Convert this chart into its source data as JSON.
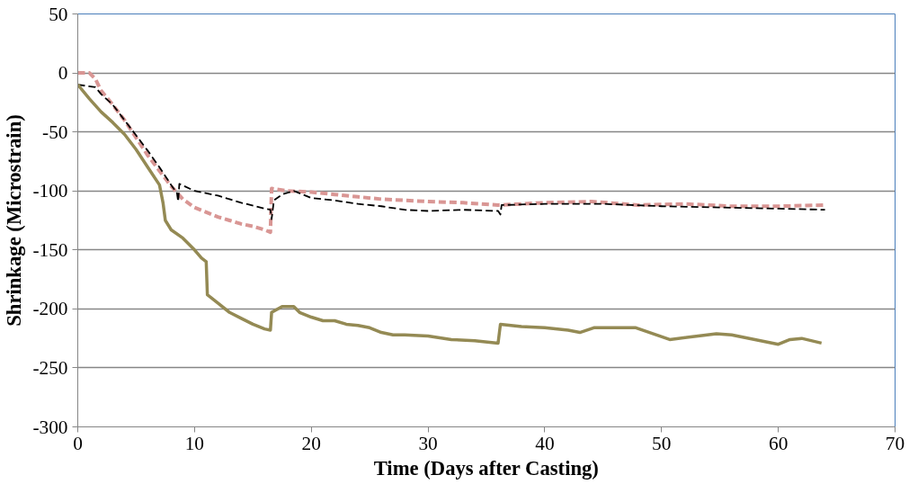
{
  "chart_data": {
    "type": "line",
    "xlabel": "Time (Days after Casting)",
    "ylabel": "Shrinkage (Microstrain)",
    "xlim": [
      0,
      70
    ],
    "xticks": [
      0,
      10,
      20,
      30,
      40,
      50,
      60,
      70
    ],
    "ylim": [
      -300,
      50
    ],
    "yticks": [
      -300,
      -250,
      -200,
      -150,
      -100,
      -50,
      0,
      50
    ],
    "grid": "y",
    "marker": "none",
    "series": [
      {
        "color": "#d99694",
        "line_style": "dashed",
        "x": [
          0,
          1,
          1.5,
          2,
          3,
          4,
          5,
          6,
          7,
          8,
          9,
          10,
          11,
          12,
          13,
          14,
          15,
          16,
          16.5,
          16.6,
          18,
          20,
          22,
          24,
          26,
          28,
          30,
          33,
          36,
          40,
          44,
          48,
          52,
          56,
          60,
          64
        ],
        "values": [
          0,
          0,
          -5,
          -15,
          -27,
          -40,
          -55,
          -70,
          -83,
          -96,
          -107,
          -114,
          -118,
          -122,
          -125,
          -128,
          -130,
          -133,
          -135,
          -98,
          -100,
          -101,
          -103,
          -105,
          -107,
          -108,
          -109,
          -110,
          -112,
          -110,
          -109,
          -112,
          -111,
          -113,
          -113,
          -112
        ]
      },
      {
        "color": "#000000",
        "line_style": "dashed",
        "x": [
          0,
          1.5,
          2,
          3,
          4,
          5,
          6,
          7,
          8,
          8.5,
          8.6,
          8.7,
          10,
          12,
          14,
          16,
          16.5,
          16.6,
          16.8,
          17.5,
          18.5,
          20,
          22,
          24,
          26,
          28,
          30,
          33,
          36,
          36.2,
          36.3,
          40,
          45,
          50,
          55,
          60,
          64
        ],
        "values": [
          -10,
          -12,
          -18,
          -27,
          -40,
          -53,
          -66,
          -80,
          -95,
          -102,
          -109,
          -94,
          -100,
          -104,
          -110,
          -115,
          -116,
          -124,
          -108,
          -103,
          -100,
          -106,
          -108,
          -111,
          -113,
          -116,
          -117,
          -116,
          -117,
          -120,
          -112,
          -111,
          -111,
          -113,
          -114,
          -115,
          -116
        ]
      },
      {
        "color": "#948a54",
        "line_style": "solid",
        "x": [
          0,
          1,
          2,
          3,
          4,
          5,
          6,
          7,
          7.3,
          7.5,
          8,
          9,
          10,
          10.6,
          11,
          11.1,
          12,
          13,
          14,
          15,
          16,
          16.5,
          16.6,
          17.5,
          18.5,
          19,
          20,
          21,
          22,
          23,
          24,
          25,
          26,
          27,
          28,
          30,
          32,
          34,
          36,
          36.2,
          38,
          40,
          42,
          43,
          44.2,
          47.8,
          50.7,
          54.7,
          56,
          58,
          60,
          61,
          62,
          63.7
        ],
        "values": [
          -10,
          -22,
          -33,
          -42,
          -52,
          -65,
          -80,
          -95,
          -110,
          -125,
          -133,
          -140,
          -150,
          -157,
          -160,
          -188,
          -195,
          -203,
          -208,
          -213,
          -217,
          -218,
          -203,
          -198,
          -198,
          -203,
          -207,
          -210,
          -210,
          -213,
          -214,
          -216,
          -220,
          -222,
          -222,
          -223,
          -226,
          -227,
          -229,
          -213,
          -215,
          -216,
          -218,
          -220,
          -216,
          -216,
          -226,
          -221,
          -222,
          -226,
          -230,
          -226,
          -225,
          -229
        ]
      }
    ]
  }
}
